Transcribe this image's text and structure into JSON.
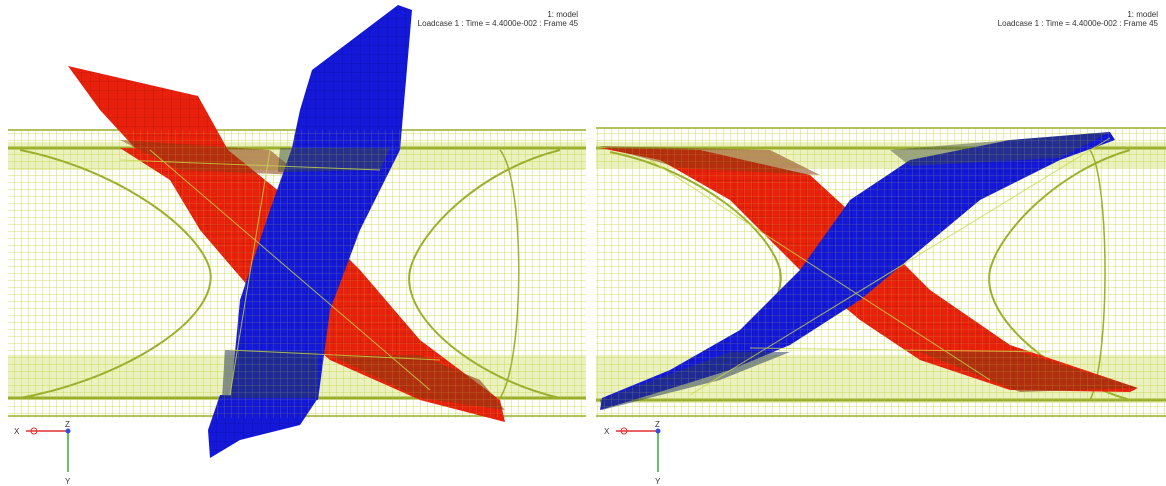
{
  "viewports": [
    {
      "model_label": "1: model",
      "loadcase_label": "Loadcase 1 : Time = 4.4000e-002 : Frame 45",
      "axes": {
        "x": "X",
        "y": "Y",
        "z": "Z"
      }
    },
    {
      "model_label": "1: model",
      "loadcase_label": "Loadcase 1 : Time = 4.4000e-002 : Frame 45",
      "axes": {
        "x": "X",
        "y": "Y",
        "z": "Z"
      }
    }
  ],
  "colors": {
    "mesh": "#c8d84a",
    "mesh_dark": "#9aae2c",
    "red_part": "#e8200c",
    "blue_part": "#1418d8",
    "axis_x": "#e03030",
    "axis_y": "#30b030",
    "axis_z": "#3050e0"
  }
}
